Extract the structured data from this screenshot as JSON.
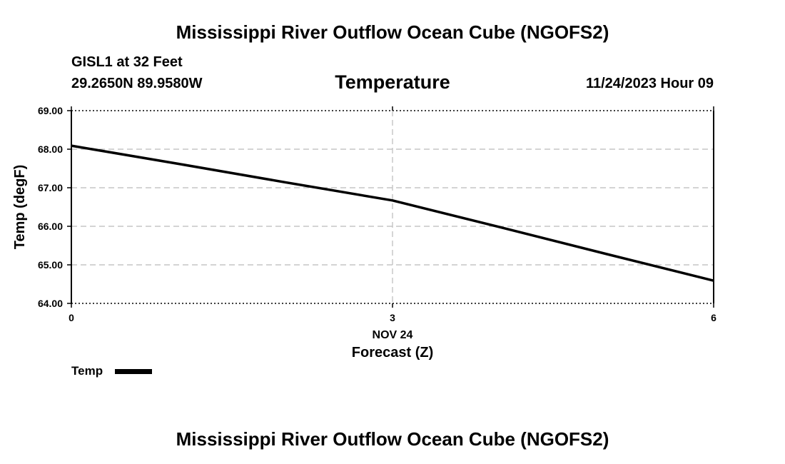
{
  "header": {
    "title": "Mississippi River Outflow Ocean Cube (NGOFS2)",
    "station": "GISL1 at 32 Feet",
    "coordinates": "29.2650N  89.9580W",
    "variable": "Temperature",
    "datetime": "11/24/2023 Hour 09"
  },
  "footer": {
    "title": "Mississippi River Outflow Ocean Cube (NGOFS2)"
  },
  "chart_data": {
    "type": "line",
    "title": "Temperature",
    "xlabel": "Forecast (Z)",
    "ylabel": "Temp (degF)",
    "xlim": [
      0,
      6
    ],
    "ylim": [
      64.0,
      69.0
    ],
    "x_ticks": [
      {
        "value": 0,
        "label": "0"
      },
      {
        "value": 3,
        "label": "3",
        "sublabel": "NOV 24"
      },
      {
        "value": 6,
        "label": "6"
      }
    ],
    "y_ticks": [
      {
        "value": 64,
        "label": "64.00"
      },
      {
        "value": 65,
        "label": "65.00"
      },
      {
        "value": 66,
        "label": "66.00"
      },
      {
        "value": 67,
        "label": "67.00"
      },
      {
        "value": 68,
        "label": "68.00"
      },
      {
        "value": 69,
        "label": "69.00"
      }
    ],
    "grid": true,
    "legend_position": "bottom-left",
    "series": [
      {
        "name": "Temp",
        "color": "#000000",
        "x": [
          0,
          1,
          2,
          3,
          4,
          5,
          6
        ],
        "values": [
          68.09,
          67.62,
          67.14,
          66.67,
          65.98,
          65.28,
          64.59
        ]
      }
    ]
  }
}
